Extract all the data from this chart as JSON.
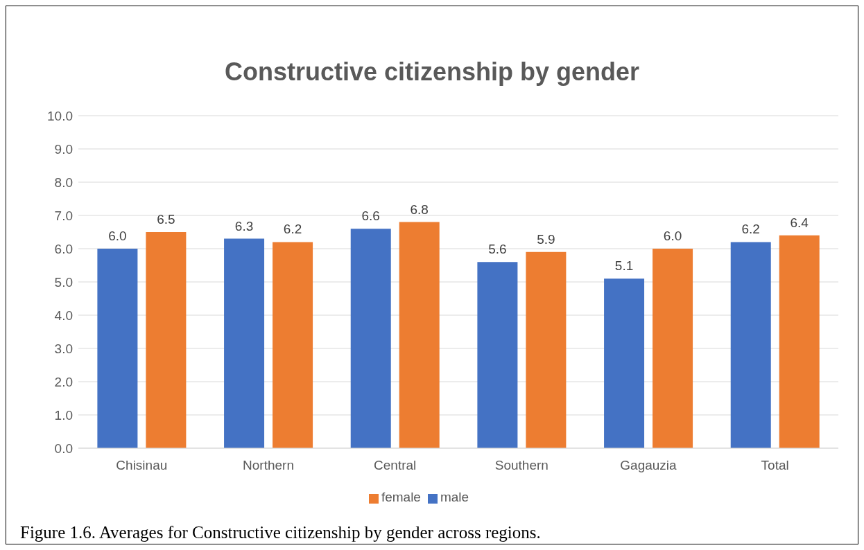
{
  "chart_data": {
    "type": "bar",
    "title": "Constructive citizenship by gender",
    "categories": [
      "Chisinau",
      "Northern",
      "Central",
      "Southern",
      "Gagauzia",
      "Total"
    ],
    "series": [
      {
        "name": "male",
        "color": "#4472c4",
        "values": [
          6.0,
          6.3,
          6.6,
          5.6,
          5.1,
          6.2
        ],
        "value_labels": [
          "6.0",
          "6.3",
          "6.6",
          "5.6",
          "5.1",
          "6.2"
        ]
      },
      {
        "name": "female",
        "color": "#ed7d31",
        "values": [
          6.5,
          6.2,
          6.8,
          5.9,
          6.0,
          6.4
        ],
        "value_labels": [
          "6.5",
          "6.2",
          "6.8",
          "5.9",
          "6.0",
          "6.4"
        ]
      }
    ],
    "ylim": [
      0,
      10
    ],
    "yticks": [
      {
        "value": 0,
        "label": "0.0"
      },
      {
        "value": 1,
        "label": "1.0"
      },
      {
        "value": 2,
        "label": "2.0"
      },
      {
        "value": 3,
        "label": "3.0"
      },
      {
        "value": 4,
        "label": "4.0"
      },
      {
        "value": 5,
        "label": "5.0"
      },
      {
        "value": 6,
        "label": "6.0"
      },
      {
        "value": 7,
        "label": "7.0"
      },
      {
        "value": 8,
        "label": "8.0"
      },
      {
        "value": 9,
        "label": "9.0"
      },
      {
        "value": 10,
        "label": "10.0"
      }
    ],
    "grid": "y",
    "legend": "bottom",
    "annotations": [
      "Figure 1.6. Averages for Constructive citizenship by gender across regions."
    ]
  }
}
